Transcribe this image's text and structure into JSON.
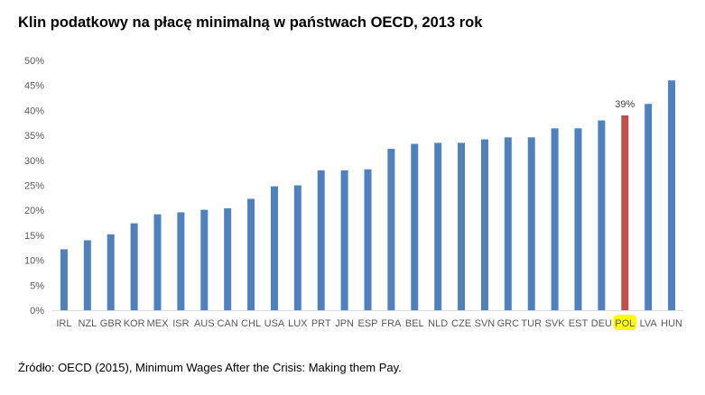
{
  "chart_data": {
    "type": "bar",
    "title": "Klin podatkowy na płacę minimalną w państwach OECD, 2013 rok",
    "source": "Źródło: OECD (2015), Minimum Wages After the Crisis: Making them Pay.",
    "xlabel": "",
    "ylabel": "",
    "ylim": [
      0,
      50
    ],
    "yticks": [
      0,
      5,
      10,
      15,
      20,
      25,
      30,
      35,
      40,
      45,
      50
    ],
    "ytick_labels": [
      "0%",
      "5%",
      "10%",
      "15%",
      "20%",
      "25%",
      "30%",
      "35%",
      "40%",
      "45%",
      "50%"
    ],
    "grid": false,
    "legend": "none",
    "categories": [
      "IRL",
      "NZL",
      "GBR",
      "KOR",
      "MEX",
      "ISR",
      "AUS",
      "CAN",
      "CHL",
      "USA",
      "LUX",
      "PRT",
      "JPN",
      "ESP",
      "FRA",
      "BEL",
      "NLD",
      "CZE",
      "SVN",
      "GRC",
      "TUR",
      "SVK",
      "EST",
      "DEU",
      "POL",
      "LVA",
      "HUN"
    ],
    "values": [
      12.2,
      14.0,
      15.2,
      17.4,
      19.2,
      19.6,
      20.1,
      20.4,
      22.3,
      24.8,
      25.0,
      28.0,
      28.0,
      28.2,
      32.3,
      33.3,
      33.5,
      33.5,
      34.2,
      34.6,
      34.6,
      36.4,
      36.4,
      38.0,
      39.0,
      41.3,
      46.0
    ],
    "highlight": {
      "category": "POL",
      "label": "39%",
      "bar_color": "#C0504D",
      "tick_highlight_color": "#FFFF00"
    },
    "bar_color": "#4F81BD",
    "axis_color": "#D9D9D9"
  }
}
